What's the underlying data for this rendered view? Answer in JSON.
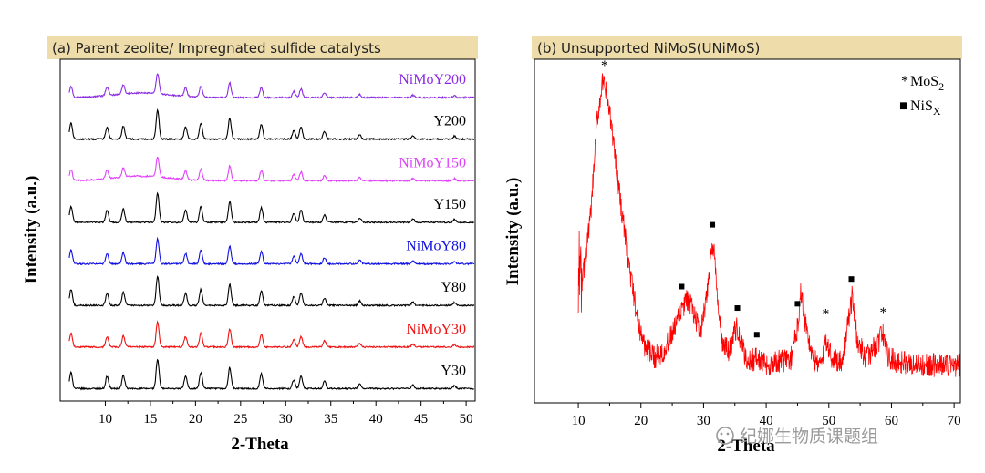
{
  "chart_data": [
    {
      "panel_label": "(a) Parent zeolite/ Impregnated sulfide catalysts",
      "type": "line",
      "xlabel": "2-Theta",
      "ylabel": "Intensity (a.u.)",
      "xlim": [
        5,
        51
      ],
      "x_ticks": [
        "10",
        "15",
        "20",
        "25",
        "30",
        "35",
        "40",
        "45",
        "50"
      ],
      "peaks_2theta": [
        6.2,
        10.2,
        12.0,
        15.8,
        18.9,
        20.6,
        23.8,
        27.3,
        30.9,
        31.7,
        34.3,
        38.2,
        44.1,
        48.7
      ],
      "peaks_rel_intensity": [
        0.55,
        0.42,
        0.45,
        1.0,
        0.42,
        0.55,
        0.72,
        0.5,
        0.3,
        0.42,
        0.25,
        0.15,
        0.12,
        0.1
      ],
      "series": [
        {
          "name": "NiMoY200",
          "color": "#8a2be2",
          "scale": 0.7,
          "broad_hump": true
        },
        {
          "name": "Y200",
          "color": "#000000",
          "scale": 1.0,
          "broad_hump": false
        },
        {
          "name": "NiMoY150",
          "color": "#e040fb",
          "scale": 0.7,
          "broad_hump": true
        },
        {
          "name": "Y150",
          "color": "#000000",
          "scale": 1.0,
          "broad_hump": false
        },
        {
          "name": "NiMoY80",
          "color": "#1010e0",
          "scale": 0.85,
          "broad_hump": false
        },
        {
          "name": "Y80",
          "color": "#000000",
          "scale": 1.0,
          "broad_hump": false
        },
        {
          "name": "NiMoY30",
          "color": "#ee1111",
          "scale": 0.85,
          "broad_hump": false
        },
        {
          "name": "Y30",
          "color": "#000000",
          "scale": 1.0,
          "broad_hump": false
        }
      ]
    },
    {
      "panel_label": "(b) Unsupported NiMoS(UNiMoS)",
      "type": "line",
      "xlabel": "2-Theta",
      "ylabel": "Intensity (a.u.)",
      "xlim": [
        3,
        71
      ],
      "x_ticks": [
        "10",
        "20",
        "30",
        "40",
        "50",
        "60",
        "70"
      ],
      "series": [
        {
          "name": "UNiMoS",
          "color": "#ff0000",
          "x": [
            10,
            11,
            12,
            13,
            13.8,
            14.5,
            15.5,
            16.5,
            17.5,
            18.5,
            19.5,
            20.5,
            22,
            24,
            25.5,
            26.5,
            27.5,
            28.5,
            29.5,
            30.5,
            31.2,
            31.6,
            32.2,
            33,
            34,
            35.2,
            36,
            37,
            38.5,
            40,
            42,
            44,
            45,
            45.5,
            46.2,
            47.5,
            49,
            49.5,
            50.5,
            52,
            53.3,
            53.8,
            54.5,
            56,
            58,
            58.5,
            59.5,
            61,
            65,
            71
          ],
          "y": [
            0.3,
            0.4,
            0.55,
            0.82,
            0.93,
            0.9,
            0.78,
            0.62,
            0.48,
            0.35,
            0.24,
            0.17,
            0.13,
            0.16,
            0.22,
            0.27,
            0.3,
            0.26,
            0.2,
            0.3,
            0.44,
            0.46,
            0.3,
            0.17,
            0.15,
            0.22,
            0.17,
            0.12,
            0.13,
            0.11,
            0.12,
            0.13,
            0.22,
            0.33,
            0.24,
            0.12,
            0.12,
            0.19,
            0.13,
            0.12,
            0.25,
            0.32,
            0.18,
            0.13,
            0.18,
            0.21,
            0.13,
            0.12,
            0.11,
            0.11
          ]
        }
      ],
      "markers": [
        {
          "symbol": "*",
          "x": 14.2,
          "series": "MoS2"
        },
        {
          "symbol": "■",
          "x": 26.5,
          "series": "NiSx"
        },
        {
          "symbol": "■",
          "x": 31.4,
          "series": "NiSx"
        },
        {
          "symbol": "■",
          "x": 35.4,
          "series": "NiSx"
        },
        {
          "symbol": "■",
          "x": 38.5,
          "series": "NiSx"
        },
        {
          "symbol": "■",
          "x": 45.0,
          "series": "NiSx"
        },
        {
          "symbol": "*",
          "x": 49.5,
          "series": "MoS2"
        },
        {
          "symbol": "■",
          "x": 53.6,
          "series": "NiSx"
        },
        {
          "symbol": "*",
          "x": 58.7,
          "series": "MoS2"
        }
      ],
      "legend": [
        {
          "symbol": "*",
          "base": "MoS",
          "sub": "2"
        },
        {
          "symbol": "■",
          "base": "NiS",
          "sub": "X"
        }
      ]
    }
  ],
  "watermark": "纪娜生物质课题组"
}
